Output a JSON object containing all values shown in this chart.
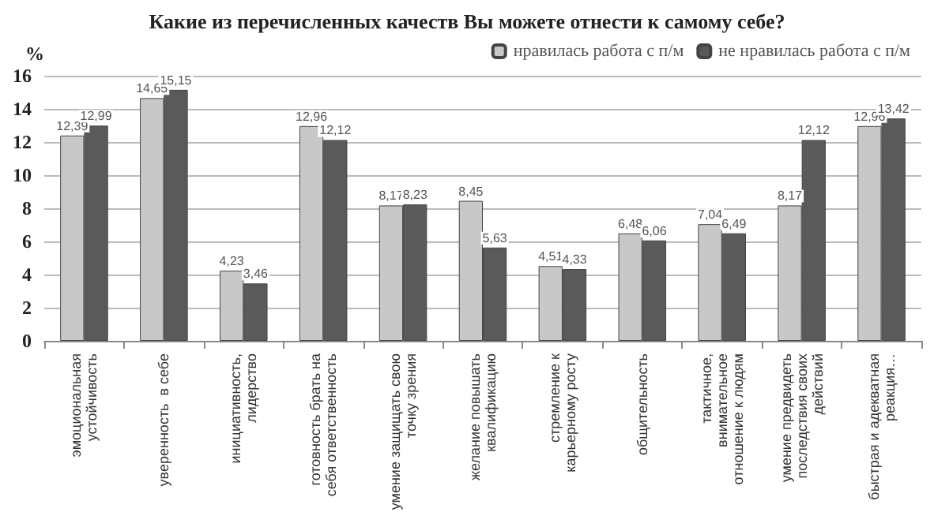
{
  "chart_data": {
    "type": "bar",
    "title": "Какие из перечисленных качеств Вы можете отнести к самому себе?",
    "ylabel": "%",
    "categories": [
      "эмоциональная устойчивость",
      "уверенность  в себе",
      "инициативность, лидерство",
      "готовность брать на себя ответственность",
      "умение защищать свою точку зрения",
      "желание повышать квалификацию",
      "стремление к карьерному росту",
      "общительность",
      "тактичное, внимательное отношение к людям",
      "умение предвидеть последствия своих действий",
      "быстрая и адекватная реакция…"
    ],
    "series": [
      {
        "name": "нравилась работа с п/м",
        "color": "#c8c8c8",
        "values": [
          12.39,
          14.65,
          4.23,
          12.96,
          8.17,
          8.45,
          4.51,
          6.48,
          7.04,
          8.17,
          12.96
        ],
        "value_labels": [
          "12,39",
          "14,65",
          "4,23",
          "12,96",
          "8,17",
          "8,45",
          "4,51",
          "6,48",
          "7,04",
          "8,17",
          "12,96"
        ]
      },
      {
        "name": "не нравилась работа с п/м",
        "color": "#5a5a5a",
        "values": [
          12.99,
          15.15,
          3.46,
          12.12,
          8.23,
          5.63,
          4.33,
          6.06,
          6.49,
          12.12,
          13.42
        ],
        "value_labels": [
          "12,99",
          "15,15",
          "3,46",
          "12,12",
          "8,23",
          "5,63",
          "4,33",
          "6,06",
          "6,49",
          "12,12",
          "13,42"
        ]
      }
    ],
    "ylim": [
      0,
      16
    ],
    "yticks": [
      0,
      2,
      4,
      6,
      8,
      10,
      12,
      14,
      16
    ],
    "grid": "y",
    "legend": "top right"
  }
}
